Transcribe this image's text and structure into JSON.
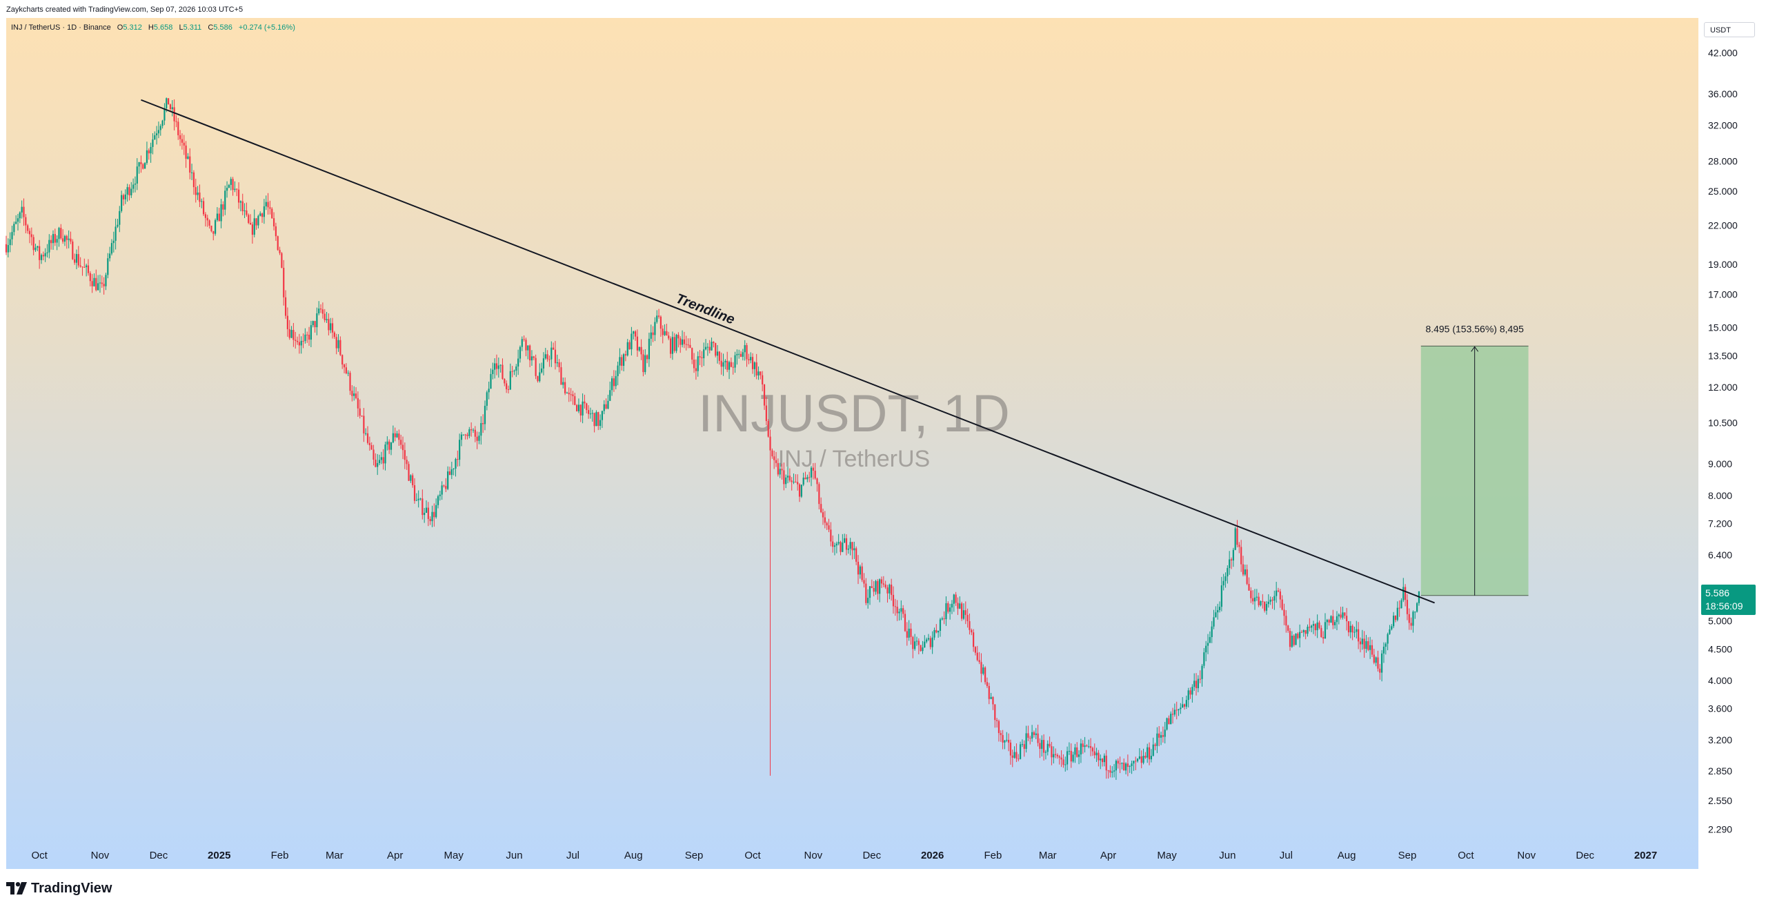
{
  "credit": "Zaykcharts created with TradingView.com, Sep 07, 2026 10:03 UTC+5",
  "header": {
    "symbol": "INJ / TetherUS · 1D · Binance",
    "o_label": "O",
    "o_value": "5.312",
    "h_label": "H",
    "h_value": "5.658",
    "l_label": "L",
    "l_value": "5.311",
    "c_label": "C",
    "c_value": "5.586",
    "change": "+0.274 (+5.16%)"
  },
  "currency": "USDT",
  "price_tag": {
    "price": "5.586",
    "countdown": "18:56:09"
  },
  "watermark": {
    "title": "INJUSDT, 1D",
    "subtitle": "INJ / TetherUS"
  },
  "trendline_label": "Trendline",
  "measure_label": "8.495 (153.56%) 8,495",
  "footer": {
    "brand": "TradingView"
  },
  "colors": {
    "up": "#089981",
    "down": "#f23645",
    "price_tag": "#089981",
    "target_box": "#9fcda0"
  },
  "chart_data": {
    "type": "candlestick",
    "title": "INJUSDT, 1D",
    "y_scale": "log",
    "ylim": [
      2.15,
      50
    ],
    "xlim": [
      "2024-09-14",
      "2027-01-28"
    ],
    "price_ticks": [
      "42.000",
      "36.000",
      "32.000",
      "28.000",
      "25.000",
      "22.000",
      "19.000",
      "17.000",
      "15.000",
      "13.500",
      "12.000",
      "10.500",
      "9.000",
      "8.000",
      "7.200",
      "6.400",
      "5.000",
      "4.500",
      "4.000",
      "3.600",
      "3.200",
      "2.850",
      "2.550",
      "2.290"
    ],
    "time_ticks": [
      {
        "label": "Oct",
        "date": "2024-10-01",
        "bold": false
      },
      {
        "label": "Nov",
        "date": "2024-11-01",
        "bold": false
      },
      {
        "label": "Dec",
        "date": "2024-12-01",
        "bold": false
      },
      {
        "label": "2025",
        "date": "2025-01-01",
        "bold": true
      },
      {
        "label": "Feb",
        "date": "2025-02-01",
        "bold": false
      },
      {
        "label": "Mar",
        "date": "2025-03-01",
        "bold": false
      },
      {
        "label": "Apr",
        "date": "2025-04-01",
        "bold": false
      },
      {
        "label": "May",
        "date": "2025-05-01",
        "bold": false
      },
      {
        "label": "Jun",
        "date": "2025-06-01",
        "bold": false
      },
      {
        "label": "Jul",
        "date": "2025-07-01",
        "bold": false
      },
      {
        "label": "Aug",
        "date": "2025-08-01",
        "bold": false
      },
      {
        "label": "Sep",
        "date": "2025-09-01",
        "bold": false
      },
      {
        "label": "Oct",
        "date": "2025-10-01",
        "bold": false
      },
      {
        "label": "Nov",
        "date": "2025-11-01",
        "bold": false
      },
      {
        "label": "Dec",
        "date": "2025-12-01",
        "bold": false
      },
      {
        "label": "2026",
        "date": "2026-01-01",
        "bold": true
      },
      {
        "label": "Feb",
        "date": "2026-02-01",
        "bold": false
      },
      {
        "label": "Mar",
        "date": "2026-03-01",
        "bold": false
      },
      {
        "label": "Apr",
        "date": "2026-04-01",
        "bold": false
      },
      {
        "label": "May",
        "date": "2026-05-01",
        "bold": false
      },
      {
        "label": "Jun",
        "date": "2026-06-01",
        "bold": false
      },
      {
        "label": "Jul",
        "date": "2026-07-01",
        "bold": false
      },
      {
        "label": "Aug",
        "date": "2026-08-01",
        "bold": false
      },
      {
        "label": "Sep",
        "date": "2026-09-01",
        "bold": false
      },
      {
        "label": "Oct",
        "date": "2026-10-01",
        "bold": false
      },
      {
        "label": "Nov",
        "date": "2026-11-01",
        "bold": false
      },
      {
        "label": "Dec",
        "date": "2026-12-01",
        "bold": false
      },
      {
        "label": "2027",
        "date": "2027-01-01",
        "bold": true
      }
    ],
    "price_path": [
      [
        "2024-09-14",
        20.5
      ],
      [
        "2024-09-22",
        23.0
      ],
      [
        "2024-10-01",
        19.5
      ],
      [
        "2024-10-12",
        21.5
      ],
      [
        "2024-10-22",
        19.0
      ],
      [
        "2024-11-02",
        17.2
      ],
      [
        "2024-11-12",
        24.0
      ],
      [
        "2024-11-22",
        27.5
      ],
      [
        "2024-12-06",
        35.0
      ],
      [
        "2024-12-14",
        29.0
      ],
      [
        "2024-12-28",
        21.0
      ],
      [
        "2025-01-07",
        26.0
      ],
      [
        "2025-01-17",
        21.5
      ],
      [
        "2025-01-25",
        24.0
      ],
      [
        "2025-02-01",
        20.0
      ],
      [
        "2025-02-05",
        15.0
      ],
      [
        "2025-02-13",
        14.0
      ],
      [
        "2025-02-22",
        16.0
      ],
      [
        "2025-03-03",
        14.0
      ],
      [
        "2025-03-13",
        11.0
      ],
      [
        "2025-03-22",
        8.8
      ],
      [
        "2025-04-02",
        10.2
      ],
      [
        "2025-04-12",
        7.8
      ],
      [
        "2025-04-20",
        7.4
      ],
      [
        "2025-04-30",
        8.8
      ],
      [
        "2025-05-07",
        10.3
      ],
      [
        "2025-05-14",
        9.8
      ],
      [
        "2025-05-22",
        13.5
      ],
      [
        "2025-05-28",
        12.0
      ],
      [
        "2025-06-06",
        14.5
      ],
      [
        "2025-06-13",
        12.5
      ],
      [
        "2025-06-20",
        13.8
      ],
      [
        "2025-06-29",
        11.5
      ],
      [
        "2025-07-07",
        11.0
      ],
      [
        "2025-07-15",
        10.5
      ],
      [
        "2025-07-24",
        13.0
      ],
      [
        "2025-08-01",
        14.5
      ],
      [
        "2025-08-06",
        13.0
      ],
      [
        "2025-08-13",
        15.5
      ],
      [
        "2025-08-20",
        14.0
      ],
      [
        "2025-08-27",
        14.5
      ],
      [
        "2025-09-01",
        13.0
      ],
      [
        "2025-09-10",
        14.2
      ],
      [
        "2025-09-18",
        12.8
      ],
      [
        "2025-09-27",
        13.8
      ],
      [
        "2025-10-05",
        12.5
      ],
      [
        "2025-10-11",
        9.0
      ],
      [
        "2025-10-18",
        8.5
      ],
      [
        "2025-10-25",
        8.2
      ],
      [
        "2025-11-01",
        8.8
      ],
      [
        "2025-11-06",
        7.2
      ],
      [
        "2025-11-13",
        6.5
      ],
      [
        "2025-11-20",
        6.8
      ],
      [
        "2025-11-28",
        5.5
      ],
      [
        "2025-12-07",
        5.8
      ],
      [
        "2025-12-15",
        5.2
      ],
      [
        "2025-12-23",
        4.5
      ],
      [
        "2025-12-30",
        4.6
      ],
      [
        "2026-01-05",
        5.0
      ],
      [
        "2026-01-12",
        5.5
      ],
      [
        "2026-01-18",
        5.0
      ],
      [
        "2026-01-24",
        4.4
      ],
      [
        "2026-02-01",
        3.6
      ],
      [
        "2026-02-05",
        3.2
      ],
      [
        "2026-02-12",
        3.0
      ],
      [
        "2026-02-20",
        3.3
      ],
      [
        "2026-02-27",
        3.1
      ],
      [
        "2026-03-08",
        2.95
      ],
      [
        "2026-03-18",
        3.1
      ],
      [
        "2026-03-28",
        2.95
      ],
      [
        "2026-04-05",
        2.9
      ],
      [
        "2026-04-12",
        2.85
      ],
      [
        "2026-04-22",
        3.05
      ],
      [
        "2026-05-01",
        3.4
      ],
      [
        "2026-05-10",
        3.7
      ],
      [
        "2026-05-18",
        4.1
      ],
      [
        "2026-05-25",
        5.0
      ],
      [
        "2026-06-01",
        6.0
      ],
      [
        "2026-06-05",
        6.9
      ],
      [
        "2026-06-12",
        5.6
      ],
      [
        "2026-06-20",
        5.2
      ],
      [
        "2026-06-26",
        5.6
      ],
      [
        "2026-07-03",
        4.6
      ],
      [
        "2026-07-12",
        4.9
      ],
      [
        "2026-07-20",
        4.8
      ],
      [
        "2026-07-28",
        5.2
      ],
      [
        "2026-08-04",
        4.8
      ],
      [
        "2026-08-11",
        4.6
      ],
      [
        "2026-08-18",
        4.2
      ],
      [
        "2026-08-25",
        5.0
      ],
      [
        "2026-08-30",
        5.6
      ],
      [
        "2026-09-03",
        4.9
      ],
      [
        "2026-09-07",
        5.586
      ]
    ],
    "extreme_wick": {
      "date": "2025-10-10",
      "low": 2.8
    },
    "annotations": {
      "trendline": {
        "label": "Trendline",
        "start": [
          "2024-11-22",
          35.2
        ],
        "end": [
          "2026-09-15",
          5.35
        ]
      },
      "target_box": {
        "label": "8.495 (153.56%) 8,495",
        "from_date": "2026-09-08",
        "to_date": "2026-11-02",
        "low": 5.5,
        "high": 14.0
      }
    },
    "last_price": 5.586
  }
}
